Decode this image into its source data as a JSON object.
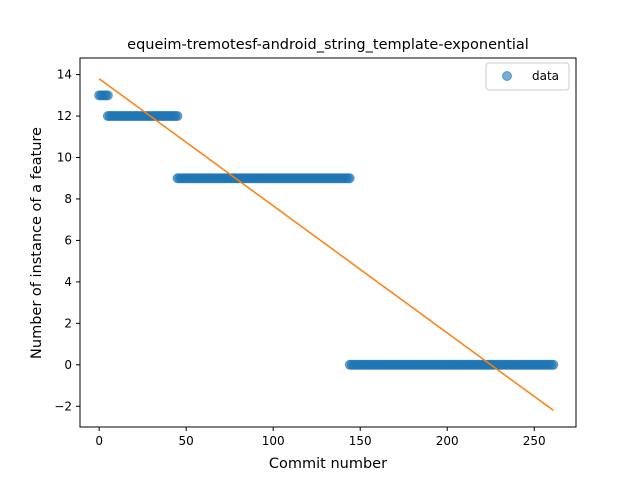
{
  "chart_data": {
    "type": "scatter",
    "title": "equeim-tremotesf-android_string_template-exponential",
    "xlabel": "Commit number",
    "ylabel": "Number of instance of a feature",
    "xlim": [
      -11,
      274
    ],
    "ylim": [
      -3,
      14.8
    ],
    "xticks": [
      0,
      50,
      100,
      150,
      200,
      250
    ],
    "yticks": [
      -2,
      0,
      2,
      4,
      6,
      8,
      10,
      12,
      14
    ],
    "grid": false,
    "legend": {
      "position": "top-right",
      "entries": [
        "data"
      ]
    },
    "series": [
      {
        "name": "data",
        "kind": "scatter",
        "color": "#1f77b4",
        "segments": [
          {
            "x_start": 0,
            "x_end": 5,
            "y": 13
          },
          {
            "x_start": 5,
            "x_end": 45,
            "y": 12
          },
          {
            "x_start": 45,
            "x_end": 144,
            "y": 9
          },
          {
            "x_start": 144,
            "x_end": 261,
            "y": 0
          }
        ]
      },
      {
        "name": "",
        "kind": "line",
        "color": "#ff7f0e",
        "x": [
          0,
          261
        ],
        "y": [
          13.8,
          -2.2
        ]
      }
    ]
  }
}
